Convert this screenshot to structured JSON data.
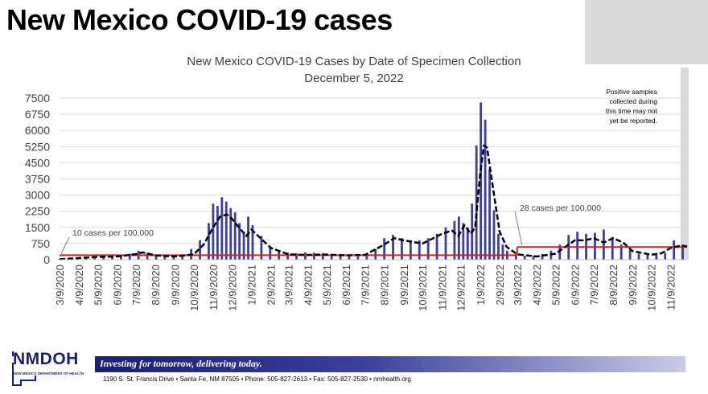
{
  "page": {
    "title": "New Mexico COVID-19 cases"
  },
  "footer": {
    "logo_text": "NMDOH",
    "logo_subtext": "NEW MEXICO DEPARTMENT OF HEALTH",
    "tagline": "Investing for tomorrow, delivering today.",
    "address": "1190 S. St. Francis Drive • Santa Fe, NM 87505 • Phone: 505-827-2613 • Fax: 505-827-2530 • nmhealth.org"
  },
  "colors": {
    "bars": "#3b3f99",
    "moving_average": "#000000",
    "threshold": "#c0272d",
    "shaded_region": "#d9d9d9",
    "footer_band": "#1a1f6e"
  },
  "chart_data": {
    "type": "bar",
    "title": "New Mexico COVID-19 Cases by Date of Specimen Collection",
    "subtitle": "December 5, 2022",
    "xlabel": "",
    "ylabel": "",
    "ylim": [
      0,
      7500
    ],
    "yticks": [
      "0",
      "750",
      "1500",
      "2250",
      "3000",
      "3750",
      "4500",
      "5250",
      "6000",
      "6750",
      "7500"
    ],
    "xtick_labels": [
      "3/9/2020",
      "4/9/2020",
      "5/9/2020",
      "6/9/2020",
      "7/9/2020",
      "8/9/2020",
      "9/9/2020",
      "10/9/2020",
      "11/9/2020",
      "12/9/2020",
      "1/9/2021",
      "2/9/2021",
      "3/9/2021",
      "4/9/2021",
      "5/9/2021",
      "6/9/2021",
      "7/9/2021",
      "8/9/2021",
      "9/9/2021",
      "10/9/2021",
      "11/9/2021",
      "12/9/2021",
      "1/9/2022",
      "2/9/2022",
      "3/9/2022",
      "4/9/2022",
      "5/9/2022",
      "6/9/2022",
      "7/9/2022",
      "8/9/2022",
      "9/9/2022",
      "10/9/2022",
      "11/9/2022"
    ],
    "grid": true,
    "legend": "none",
    "series": [
      {
        "kind": "bar",
        "x": [
          "2020-03-09",
          "2020-03-23",
          "2020-04-06",
          "2020-04-20",
          "2020-05-04",
          "2020-05-18",
          "2020-06-01",
          "2020-06-15",
          "2020-06-29",
          "2020-07-13",
          "2020-07-27",
          "2020-08-10",
          "2020-08-24",
          "2020-09-07",
          "2020-09-21",
          "2020-10-05",
          "2020-10-19",
          "2020-11-02",
          "2020-11-09",
          "2020-11-16",
          "2020-11-23",
          "2020-11-30",
          "2020-12-07",
          "2020-12-14",
          "2020-12-21",
          "2020-12-28",
          "2021-01-04",
          "2021-01-11",
          "2021-01-25",
          "2021-02-08",
          "2021-02-22",
          "2021-03-08",
          "2021-03-22",
          "2021-04-05",
          "2021-04-19",
          "2021-05-03",
          "2021-05-17",
          "2021-05-31",
          "2021-06-14",
          "2021-06-28",
          "2021-07-12",
          "2021-07-26",
          "2021-08-09",
          "2021-08-23",
          "2021-09-06",
          "2021-09-20",
          "2021-10-04",
          "2021-10-18",
          "2021-11-01",
          "2021-11-15",
          "2021-11-29",
          "2021-12-06",
          "2021-12-13",
          "2021-12-20",
          "2021-12-27",
          "2022-01-03",
          "2022-01-10",
          "2022-01-17",
          "2022-01-24",
          "2022-01-31",
          "2022-02-07",
          "2022-02-14",
          "2022-02-21",
          "2022-03-07",
          "2022-03-21",
          "2022-04-04",
          "2022-04-18",
          "2022-05-02",
          "2022-05-16",
          "2022-05-30",
          "2022-06-13",
          "2022-06-27",
          "2022-07-11",
          "2022-07-25",
          "2022-08-08",
          "2022-08-22",
          "2022-09-05",
          "2022-09-19",
          "2022-10-03",
          "2022-10-17",
          "2022-10-31",
          "2022-11-14",
          "2022-11-28"
        ],
        "values": [
          30,
          80,
          110,
          140,
          180,
          150,
          140,
          180,
          280,
          420,
          320,
          220,
          180,
          150,
          230,
          500,
          900,
          1700,
          2600,
          2500,
          2900,
          2700,
          2400,
          2200,
          1700,
          1300,
          2000,
          1600,
          1100,
          600,
          420,
          330,
          300,
          340,
          320,
          300,
          250,
          200,
          150,
          150,
          230,
          500,
          1000,
          1150,
          1000,
          900,
          900,
          1000,
          1200,
          1500,
          1800,
          2000,
          1700,
          1500,
          2600,
          5300,
          7300,
          6500,
          4200,
          2300,
          1200,
          700,
          420,
          250,
          180,
          200,
          260,
          420,
          700,
          1150,
          1300,
          1200,
          1250,
          1400,
          1050,
          700,
          450,
          280,
          220,
          240,
          320,
          900,
          700
        ]
      },
      {
        "kind": "line",
        "name": "moving average",
        "x": [
          "2020-03-09",
          "2020-04-09",
          "2020-05-09",
          "2020-06-09",
          "2020-07-09",
          "2020-07-20",
          "2020-08-09",
          "2020-09-09",
          "2020-10-09",
          "2020-10-25",
          "2020-11-09",
          "2020-11-20",
          "2020-12-01",
          "2020-12-09",
          "2020-12-20",
          "2021-01-01",
          "2021-01-09",
          "2021-01-20",
          "2021-02-09",
          "2021-03-09",
          "2021-04-09",
          "2021-05-09",
          "2021-06-09",
          "2021-07-09",
          "2021-08-09",
          "2021-08-25",
          "2021-09-09",
          "2021-10-09",
          "2021-11-09",
          "2021-11-25",
          "2021-12-05",
          "2021-12-15",
          "2021-12-25",
          "2022-01-01",
          "2022-01-09",
          "2022-01-15",
          "2022-01-20",
          "2022-01-27",
          "2022-02-09",
          "2022-02-20",
          "2022-03-09",
          "2022-04-09",
          "2022-05-09",
          "2022-05-25",
          "2022-06-09",
          "2022-06-25",
          "2022-07-09",
          "2022-07-25",
          "2022-08-09",
          "2022-08-25",
          "2022-09-09",
          "2022-10-09",
          "2022-10-25",
          "2022-11-09",
          "2022-11-25",
          "2022-12-05"
        ],
        "values": [
          20,
          80,
          130,
          150,
          260,
          340,
          200,
          150,
          250,
          700,
          1500,
          2000,
          2100,
          1900,
          1500,
          1100,
          1400,
          1100,
          550,
          250,
          220,
          240,
          200,
          220,
          700,
          1000,
          900,
          750,
          1200,
          1350,
          1100,
          1600,
          1200,
          1500,
          4000,
          5300,
          5200,
          3800,
          1300,
          600,
          250,
          150,
          280,
          600,
          900,
          900,
          1000,
          800,
          1000,
          800,
          400,
          230,
          300,
          550,
          650,
          620
        ]
      }
    ],
    "reference_lines": [
      {
        "label": "10 cases per 100,000",
        "value": 210,
        "x_start": "2020-03-09",
        "x_end": "2022-03-09"
      },
      {
        "label": "28 cases per 100,000",
        "value": 590,
        "x_start": "2022-03-09",
        "x_end": "2022-12-05"
      }
    ],
    "annotation": "Positive samples collected during this time may not yet be reported."
  }
}
